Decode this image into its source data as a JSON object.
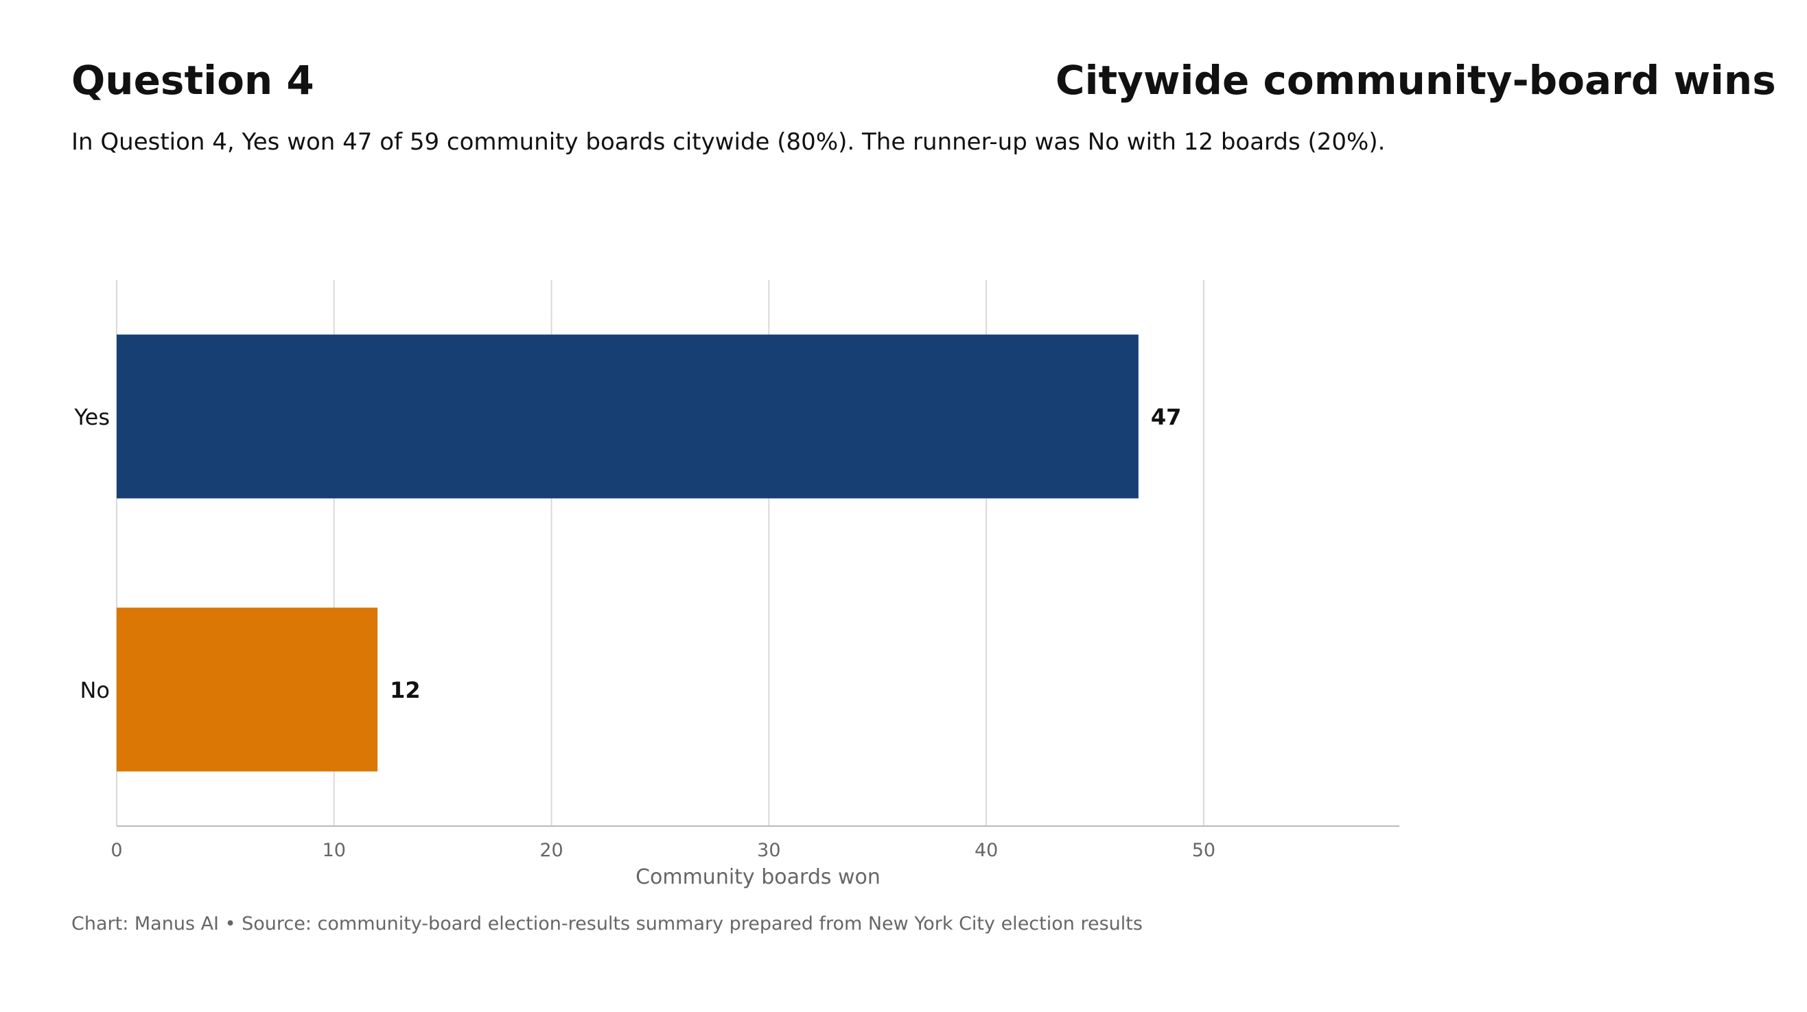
{
  "header": {
    "question_title": "Question 4",
    "chart_title": "Citywide community-board wins",
    "subtitle": "In Question 4, Yes won 47 of 59 community boards citywide (80%). The runner-up was No with 12 boards (20%)."
  },
  "footer": {
    "source_text": "Chart: Manus AI • Source: community-board election-results summary prepared from New York City election results"
  },
  "chart_data": {
    "type": "bar",
    "orientation": "horizontal",
    "categories": [
      "Yes",
      "No"
    ],
    "values": [
      47,
      12
    ],
    "colors": [
      "#173F73",
      "#DA7705"
    ],
    "xlabel": "Community boards won",
    "ylabel": "",
    "xlim": [
      0,
      59
    ],
    "xticks": [
      0,
      10,
      20,
      30,
      40,
      50
    ],
    "grid": "vertical",
    "data_labels": [
      "47",
      "12"
    ]
  }
}
